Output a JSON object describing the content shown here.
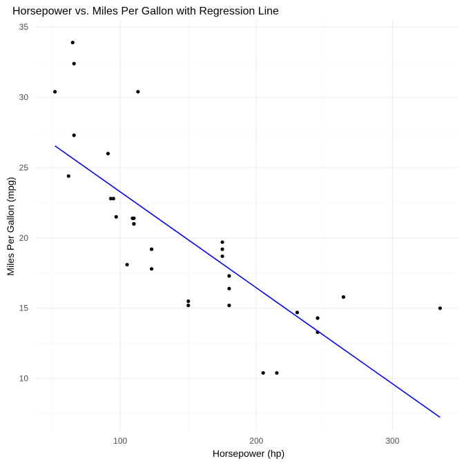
{
  "chart_data": {
    "type": "scatter",
    "title": "Horsepower vs. Miles Per Gallon with Regression Line",
    "xlabel": "Horsepower (hp)",
    "ylabel": "Miles Per Gallon (mpg)",
    "xlim": [
      38,
      348
    ],
    "ylim": [
      6.3,
      35.5
    ],
    "xticks": [
      100,
      200,
      300
    ],
    "yticks": [
      10,
      15,
      20,
      25,
      30,
      35
    ],
    "grid": true,
    "point_color": "#000000",
    "line_color": "#0000ff",
    "points": [
      {
        "x": 110,
        "y": 21.0
      },
      {
        "x": 110,
        "y": 21.0
      },
      {
        "x": 93,
        "y": 22.8
      },
      {
        "x": 110,
        "y": 21.4
      },
      {
        "x": 175,
        "y": 18.7
      },
      {
        "x": 105,
        "y": 18.1
      },
      {
        "x": 245,
        "y": 14.3
      },
      {
        "x": 62,
        "y": 24.4
      },
      {
        "x": 95,
        "y": 22.8
      },
      {
        "x": 123,
        "y": 19.2
      },
      {
        "x": 123,
        "y": 17.8
      },
      {
        "x": 180,
        "y": 16.4
      },
      {
        "x": 180,
        "y": 17.3
      },
      {
        "x": 180,
        "y": 15.2
      },
      {
        "x": 205,
        "y": 10.4
      },
      {
        "x": 215,
        "y": 10.4
      },
      {
        "x": 230,
        "y": 14.7
      },
      {
        "x": 66,
        "y": 32.4
      },
      {
        "x": 52,
        "y": 30.4
      },
      {
        "x": 65,
        "y": 33.9
      },
      {
        "x": 97,
        "y": 21.5
      },
      {
        "x": 150,
        "y": 15.5
      },
      {
        "x": 150,
        "y": 15.2
      },
      {
        "x": 245,
        "y": 13.3
      },
      {
        "x": 175,
        "y": 19.2
      },
      {
        "x": 66,
        "y": 27.3
      },
      {
        "x": 91,
        "y": 26.0
      },
      {
        "x": 113,
        "y": 30.4
      },
      {
        "x": 264,
        "y": 15.8
      },
      {
        "x": 175,
        "y": 19.7
      },
      {
        "x": 335,
        "y": 15.0
      },
      {
        "x": 109,
        "y": 21.4
      }
    ],
    "regression_line": {
      "x": [
        52,
        335
      ],
      "y": [
        26.55,
        7.24
      ]
    }
  }
}
